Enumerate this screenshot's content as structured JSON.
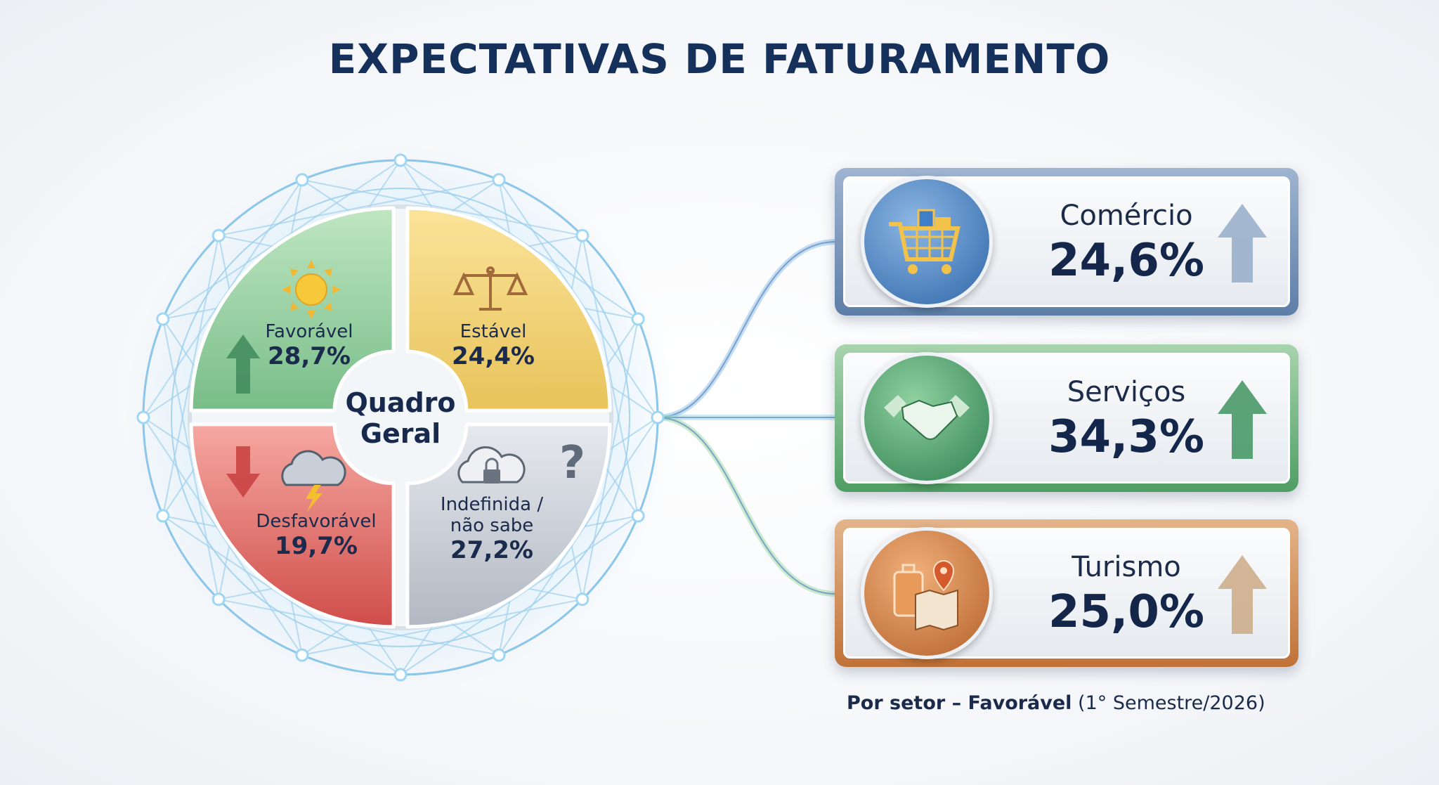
{
  "title": "EXPECTATIVAS DE FATURAMENTO",
  "overview": {
    "center_label_1": "Quadro",
    "center_label_2": "Geral",
    "quadrants": [
      {
        "label": "Favorável",
        "value": "28,7%",
        "color": "#8fcf9a",
        "icon": "sun-icon",
        "arrow": "up"
      },
      {
        "label": "Estável",
        "value": "24,4%",
        "color": "#f0d06a",
        "icon": "scale-icon"
      },
      {
        "label": "Desfavorável",
        "value": "19,7%",
        "color": "#e4736c",
        "icon": "storm-cloud-icon",
        "arrow": "down"
      },
      {
        "label_1": "Indefinida /",
        "label_2": "não sabe",
        "value": "27,2%",
        "color": "#c9ced6",
        "icon": "cloud-lock-icon",
        "extra_icon": "question-mark-icon"
      }
    ]
  },
  "sectors": [
    {
      "name": "Comércio",
      "value": "24,6%",
      "color": "#4a7fbf",
      "icon": "shopping-cart-icon"
    },
    {
      "name": "Serviços",
      "value": "34,3%",
      "color": "#4f9e64",
      "icon": "handshake-icon"
    },
    {
      "name": "Turismo",
      "value": "25,0%",
      "color": "#c97a3e",
      "icon": "luggage-map-icon"
    }
  ],
  "footnote": {
    "bold": "Por setor – Favorável",
    "normal": "(1° Semestre/2026)"
  }
}
